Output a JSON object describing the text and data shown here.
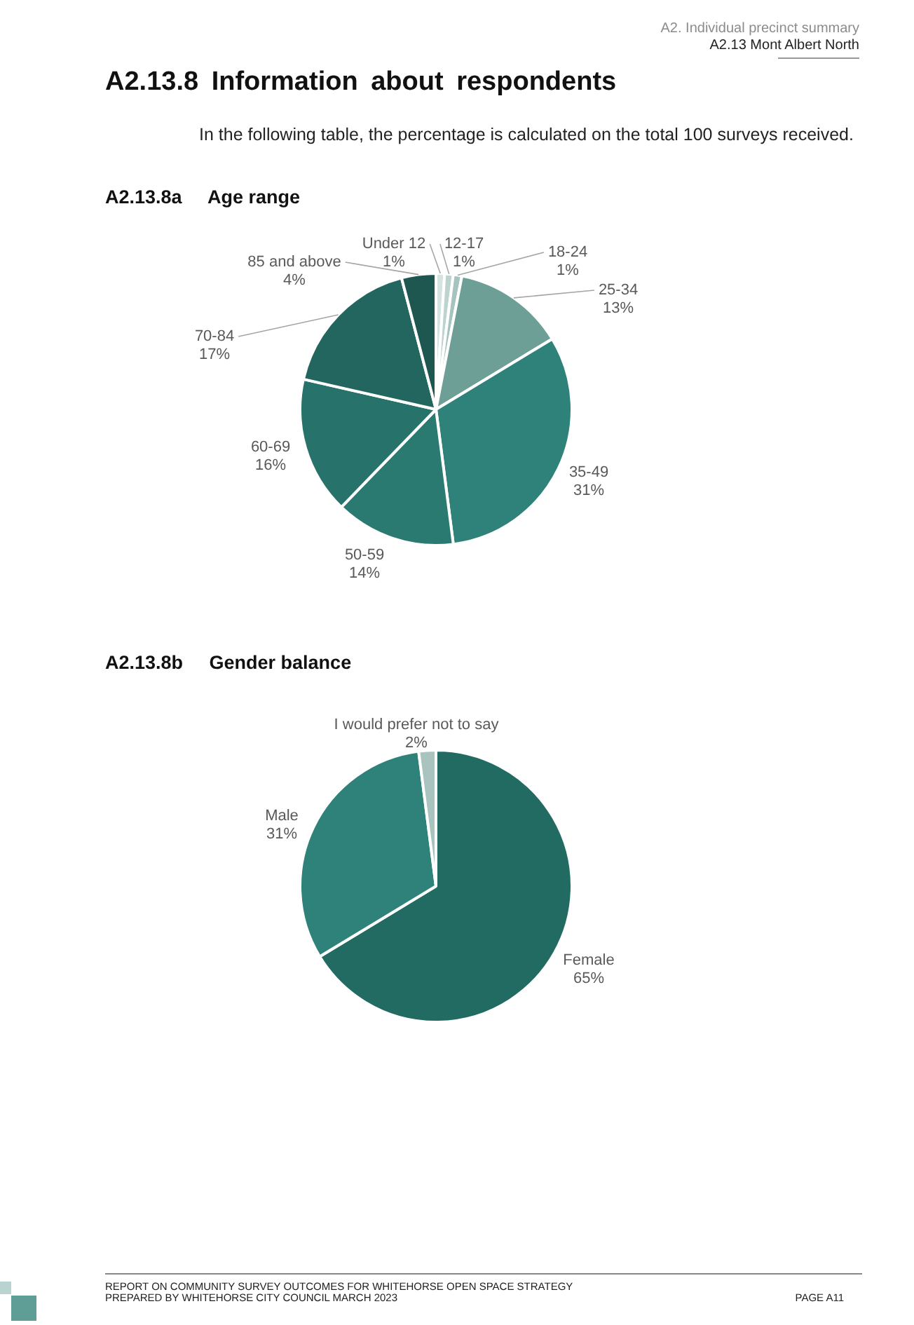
{
  "chart_data": [
    {
      "type": "pie",
      "title": "A2.13.8a Age range",
      "categories": [
        "Under 12",
        "12-17",
        "18-24",
        "25-34",
        "35-49",
        "50-59",
        "60-69",
        "70-84",
        "85 and above"
      ],
      "values": [
        1,
        1,
        1,
        13,
        31,
        14,
        16,
        17,
        4
      ],
      "colors": [
        "#d6e4e1",
        "#bcd3cf",
        "#a5c4bf",
        "#6d9f97",
        "#2e8279",
        "#2a7a72",
        "#27726b",
        "#23665f",
        "#1e5650"
      ],
      "value_labels": [
        "1%",
        "1%",
        "1%",
        "13%",
        "31%",
        "14%",
        "16%",
        "17%",
        "4%"
      ],
      "annotations": [
        "A2. Individual precinct summary",
        "A2.13 Mont Albert North",
        "A2.13.8 Information about respondents",
        "In the following table, the percentage is calculated on the total 100 surveys received."
      ]
    },
    {
      "type": "pie",
      "title": "A2.13.8b Gender balance",
      "categories": [
        "Female",
        "Male",
        "I would prefer not to say"
      ],
      "values": [
        65,
        31,
        2
      ],
      "colors": [
        "#226b63",
        "#2e8279",
        "#a9c3bf"
      ],
      "value_labels": [
        "65%",
        "31%",
        "2%"
      ],
      "annotations": [
        "REPORT ON COMMUNITY SURVEY OUTCOMES FOR WHITEHORSE OPEN SPACE STRATEGY",
        "PREPARED BY WHITEHORSE CITY COUNCIL MARCH 2023",
        "PAGE A11"
      ]
    }
  ]
}
